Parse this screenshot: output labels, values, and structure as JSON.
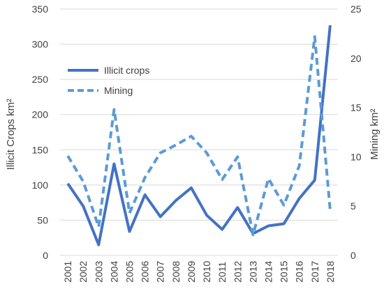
{
  "chart_data": {
    "type": "line",
    "categories": [
      "2001",
      "2002",
      "2003",
      "2004",
      "2005",
      "2006",
      "2007",
      "2008",
      "2009",
      "2010",
      "2011",
      "2012",
      "2013",
      "2014",
      "2015",
      "2016",
      "2017",
      "2018"
    ],
    "series": [
      {
        "name": "Illicit crops",
        "axis": "left",
        "style": "solid",
        "color": "#4472c4",
        "values": [
          102,
          70,
          15,
          130,
          34,
          86,
          55,
          78,
          96,
          57,
          37,
          68,
          31,
          42,
          45,
          81,
          107,
          327
        ]
      },
      {
        "name": "Mining",
        "axis": "right",
        "style": "dashed",
        "color": "#5b9bd5",
        "values": [
          10.1,
          7.5,
          2.9,
          14.8,
          4.3,
          7.9,
          10.4,
          11.2,
          12.1,
          10.4,
          7.7,
          10.0,
          2.1,
          7.8,
          5.1,
          9.1,
          22.2,
          4.6
        ]
      }
    ],
    "ylabel_left": "Illicit Crops km²",
    "ylabel_right": "Mining km²",
    "ylim_left": [
      0,
      350
    ],
    "ylim_right": [
      0,
      25
    ],
    "yticks_left": [
      0,
      50,
      100,
      150,
      200,
      250,
      300,
      350
    ],
    "yticks_right": [
      0,
      5,
      10,
      15,
      20,
      25
    ],
    "grid": true,
    "legend_position": "upper-left"
  }
}
